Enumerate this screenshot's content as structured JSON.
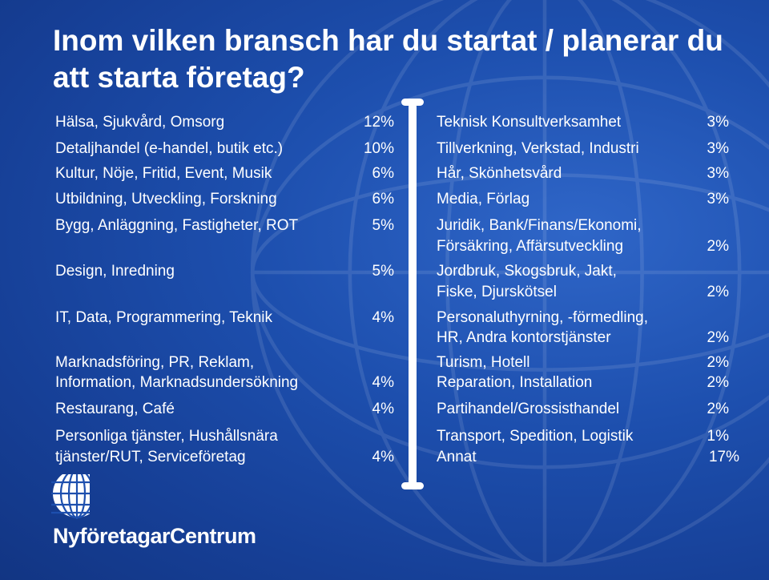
{
  "title": "Inom vilken bransch har du startat / planerar du att starta företag?",
  "left_items": [
    {
      "label": "Hälsa, Sjukvård, Omsorg",
      "value": "12%"
    },
    {
      "label": "Detaljhandel (e-handel, butik etc.)",
      "value": "10%"
    },
    {
      "label": "Kultur, Nöje, Fritid, Event, Musik",
      "value": "6%"
    },
    {
      "label": "Utbildning, Utveckling, Forskning",
      "value": "6%"
    },
    {
      "label": "Bygg, Anläggning, Fastigheter, ROT",
      "value": "5%"
    },
    {
      "label": "Design, Inredning",
      "value": "5%"
    },
    {
      "label": "IT, Data, Programmering, Teknik",
      "value": "4%"
    },
    {
      "label_line1": "Marknadsföring, PR, Reklam,",
      "label_line2": "Information, Marknadsundersökning",
      "value": "4%"
    },
    {
      "label": "Restaurang, Café",
      "value": "4%"
    },
    {
      "label_line1": "Personliga tjänster, Hushållsnära",
      "label_line2": "tjänster/RUT, Serviceföretag",
      "value": "4%"
    }
  ],
  "right_items": [
    {
      "label": "Teknisk Konsultverksamhet",
      "value": "3%"
    },
    {
      "label": "Tillverkning, Verkstad, Industri",
      "value": "3%"
    },
    {
      "label": "Hår, Skönhetsvård",
      "value": "3%"
    },
    {
      "label": "Media, Förlag",
      "value": "3%"
    },
    {
      "label_line1": "Juridik, Bank/Finans/Ekonomi,",
      "label_line2": "Försäkring, Affärsutveckling",
      "value": "2%"
    },
    {
      "label_line1": "Jordbruk, Skogsbruk, Jakt,",
      "label_line2": "Fiske, Djurskötsel",
      "value": "2%"
    },
    {
      "label_line1": "Personaluthyrning, -förmedling,",
      "label_line2": "HR, Andra kontorstjänster",
      "value": "2%"
    },
    {
      "label": "Turism, Hotell",
      "value": "2%"
    },
    {
      "label": "Reparation, Installation",
      "value": "2%"
    },
    {
      "label": "Partihandel/Grossisthandel",
      "value": "2%"
    },
    {
      "label": "Transport, Spedition, Logistik",
      "value": "1%"
    },
    {
      "label": "Annat",
      "value": "17%"
    }
  ],
  "logo": {
    "text": "NyföretagarCentrum"
  },
  "colors": {
    "background": "#1d4fae",
    "text": "#ffffff"
  }
}
